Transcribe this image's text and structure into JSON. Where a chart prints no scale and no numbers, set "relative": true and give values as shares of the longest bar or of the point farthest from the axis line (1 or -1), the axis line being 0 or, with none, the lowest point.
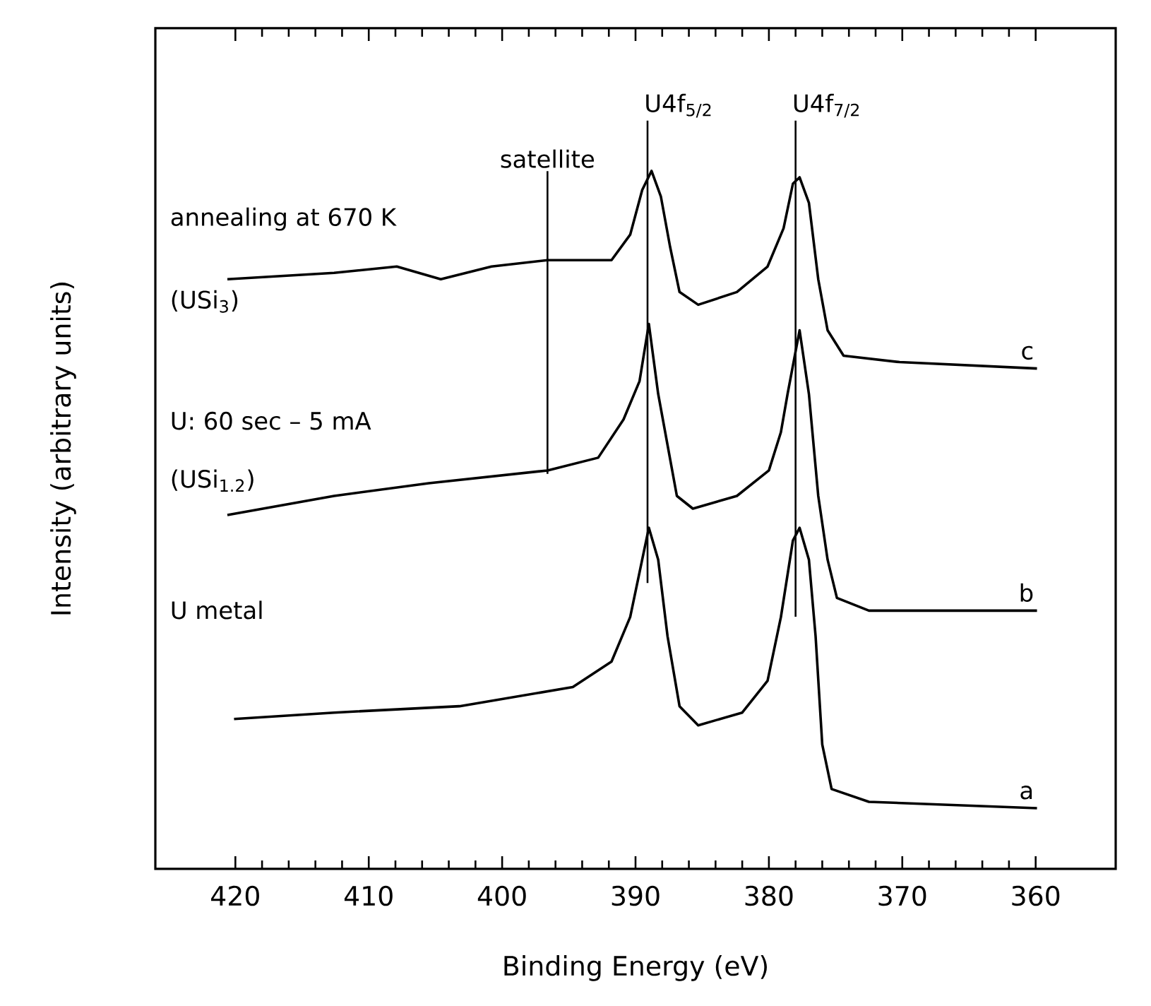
{
  "chart_data": {
    "type": "line",
    "relative": true,
    "xlabel": "Binding Energy (eV)",
    "ylabel": "Intensity (arbitrary units)",
    "xlim": [
      426,
      354
    ],
    "xticks": [
      420,
      410,
      400,
      390,
      380,
      370,
      360
    ],
    "series": [
      {
        "name": "c",
        "color": "#000000",
        "x": [
          420.6,
          412.6,
          407.9,
          404.6,
          400.8,
          396.6,
          391.8,
          390.4,
          389.5,
          388.8,
          388.1,
          387.4,
          386.7,
          385.3,
          382.4,
          380.1,
          378.9,
          378.2,
          377.7,
          377.0,
          376.3,
          375.6,
          374.4,
          370.2,
          359.9
        ],
        "values": [
          0.83,
          0.84,
          0.85,
          0.83,
          0.85,
          0.86,
          0.86,
          0.9,
          0.97,
          1.0,
          0.96,
          0.88,
          0.81,
          0.79,
          0.81,
          0.85,
          0.91,
          0.98,
          0.99,
          0.95,
          0.83,
          0.75,
          0.71,
          0.7,
          0.69
        ]
      },
      {
        "name": "b",
        "color": "#000000",
        "x": [
          420.6,
          412.6,
          405.5,
          396.6,
          392.8,
          390.9,
          389.7,
          389.0,
          388.3,
          387.6,
          386.9,
          385.7,
          382.4,
          380.0,
          379.1,
          378.6,
          377.7,
          377.0,
          376.3,
          375.6,
          374.9,
          372.5,
          359.9
        ],
        "values": [
          0.46,
          0.49,
          0.51,
          0.53,
          0.55,
          0.61,
          0.67,
          0.76,
          0.65,
          0.57,
          0.49,
          0.47,
          0.49,
          0.53,
          0.59,
          0.65,
          0.75,
          0.65,
          0.49,
          0.39,
          0.33,
          0.31,
          0.31
        ]
      },
      {
        "name": "a",
        "color": "#000000",
        "x": [
          420.1,
          412.6,
          403.2,
          394.7,
          391.8,
          390.4,
          389.5,
          389.0,
          388.3,
          387.6,
          386.7,
          385.3,
          382.0,
          380.1,
          379.1,
          378.2,
          377.7,
          377.0,
          376.5,
          376.0,
          375.3,
          372.5,
          359.9
        ],
        "values": [
          0.14,
          0.15,
          0.16,
          0.19,
          0.23,
          0.3,
          0.39,
          0.44,
          0.39,
          0.27,
          0.16,
          0.13,
          0.15,
          0.2,
          0.3,
          0.42,
          0.44,
          0.39,
          0.27,
          0.1,
          0.03,
          0.01,
          0.0
        ]
      }
    ],
    "ref_lines": [
      {
        "axis": "x",
        "value": 396.6,
        "label": "satellite"
      },
      {
        "axis": "x",
        "value": 389.1,
        "label": "U4f$_{5/2}$"
      },
      {
        "axis": "x",
        "value": 378.0,
        "label": "U4f$_{7/2}$"
      }
    ],
    "annotations": [
      "annealing at 670 K",
      "(USi$_{3}$)",
      "U: 60 sec – 5 mA",
      "(USi$_{1.2}$)",
      "U metal"
    ]
  }
}
